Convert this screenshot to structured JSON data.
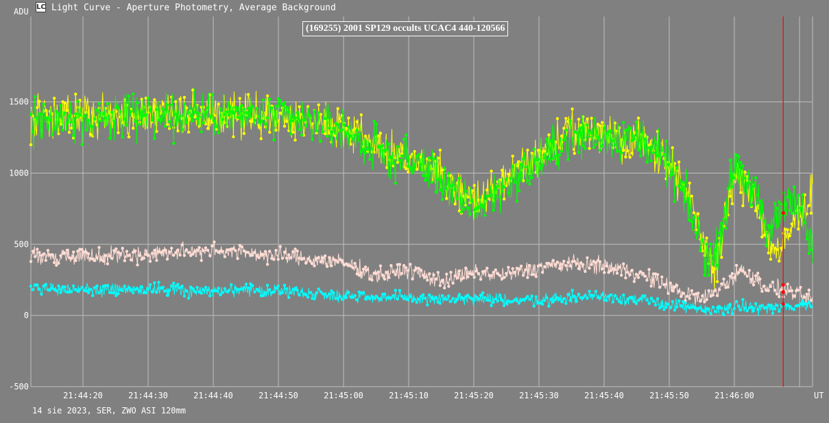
{
  "window": {
    "title": "Light Curve - Aperture Photometry, Average Background",
    "app_icon_glyph": "LC"
  },
  "footer": {
    "info": "14 sie 2023, SER, ZWO ASI 120mm"
  },
  "chart_data": {
    "type": "line",
    "title": "(169255) 2001 SP129 occults UCAC4 440-120566",
    "ylabel": "ADU",
    "xlabel": "UT",
    "ylim": [
      -500,
      2100
    ],
    "xlim": [
      "21:44:12",
      "21:46:12"
    ],
    "grid": true,
    "background_color": "#808080",
    "grid_color": "#c0c0c0",
    "y_ticks": [
      {
        "value": -500,
        "label": "-500"
      },
      {
        "value": 0,
        "label": "0"
      },
      {
        "value": 500,
        "label": "500"
      },
      {
        "value": 1000,
        "label": "1000"
      },
      {
        "value": 1500,
        "label": "1500"
      }
    ],
    "x_ticks": [
      {
        "value": "21:44:20",
        "label": "21:44:20"
      },
      {
        "value": "21:44:30",
        "label": "21:44:30"
      },
      {
        "value": "21:44:40",
        "label": "21:44:40"
      },
      {
        "value": "21:44:50",
        "label": "21:44:50"
      },
      {
        "value": "21:45:00",
        "label": "21:45:00"
      },
      {
        "value": "21:45:10",
        "label": "21:45:10"
      },
      {
        "value": "21:45:20",
        "label": "21:45:20"
      },
      {
        "value": "21:45:30",
        "label": "21:45:30"
      },
      {
        "value": "21:45:40",
        "label": "21:45:40"
      },
      {
        "value": "21:45:50",
        "label": "21:45:50"
      },
      {
        "value": "21:46:00",
        "label": "21:46:00"
      }
    ],
    "marker_line": {
      "x": "21:46:07.5",
      "color": "#ff0000"
    },
    "marker_points": [
      {
        "x": "21:46:07.5",
        "y": 720
      },
      {
        "x": "21:46:07.5",
        "y": 215
      },
      {
        "x": "21:46:07.5",
        "y": 165
      },
      {
        "x": "21:46:07.5",
        "y": 80
      }
    ],
    "series": [
      {
        "color": "#ffff00",
        "noise": 100,
        "x": [
          "21:44:12",
          "21:44:20",
          "21:44:30",
          "21:44:40",
          "21:44:50",
          "21:45:00",
          "21:45:03",
          "21:45:06",
          "21:45:10",
          "21:45:14",
          "21:45:18",
          "21:45:21",
          "21:45:25",
          "21:45:30",
          "21:45:34",
          "21:45:38",
          "21:45:42",
          "21:45:46",
          "21:45:50",
          "21:45:53",
          "21:45:55",
          "21:45:57",
          "21:46:00",
          "21:46:03",
          "21:46:05",
          "21:46:07",
          "21:46:09",
          "21:46:12"
        ],
        "y": [
          1380,
          1390,
          1420,
          1420,
          1400,
          1330,
          1280,
          1150,
          1100,
          1020,
          840,
          800,
          960,
          1120,
          1270,
          1300,
          1250,
          1230,
          1080,
          820,
          550,
          330,
          980,
          870,
          550,
          420,
          650,
          860
        ]
      },
      {
        "color": "#00ff00",
        "noise": 110,
        "x": [
          "21:44:12",
          "21:44:20",
          "21:44:30",
          "21:44:40",
          "21:44:50",
          "21:45:00",
          "21:45:03",
          "21:45:06",
          "21:45:10",
          "21:45:14",
          "21:45:18",
          "21:45:21",
          "21:45:25",
          "21:45:30",
          "21:45:34",
          "21:45:38",
          "21:45:42",
          "21:45:46",
          "21:45:50",
          "21:45:53",
          "21:45:55",
          "21:45:57",
          "21:46:00",
          "21:46:03",
          "21:46:05",
          "21:46:07",
          "21:46:09",
          "21:46:12"
        ],
        "y": [
          1370,
          1380,
          1410,
          1410,
          1390,
          1300,
          1220,
          1130,
          1090,
          1010,
          800,
          770,
          930,
          1080,
          1230,
          1280,
          1260,
          1240,
          1050,
          780,
          480,
          380,
          1060,
          880,
          560,
          720,
          880,
          470
        ]
      },
      {
        "color": "#ffdcd4",
        "noise": 40,
        "x": [
          "21:44:12",
          "21:44:20",
          "21:44:30",
          "21:44:40",
          "21:44:50",
          "21:45:00",
          "21:45:05",
          "21:45:10",
          "21:45:15",
          "21:45:20",
          "21:45:25",
          "21:45:30",
          "21:45:35",
          "21:45:40",
          "21:45:45",
          "21:45:50",
          "21:45:55",
          "21:45:58",
          "21:46:01",
          "21:46:05",
          "21:46:08",
          "21:46:12"
        ],
        "y": [
          420,
          420,
          430,
          460,
          420,
          370,
          280,
          320,
          240,
          300,
          280,
          340,
          360,
          350,
          300,
          200,
          110,
          200,
          320,
          200,
          180,
          100
        ]
      },
      {
        "color": "#00ffff",
        "noise": 30,
        "x": [
          "21:44:12",
          "21:44:20",
          "21:44:30",
          "21:44:40",
          "21:44:50",
          "21:45:00",
          "21:45:10",
          "21:45:20",
          "21:45:30",
          "21:45:40",
          "21:45:50",
          "21:45:56",
          "21:46:00",
          "21:46:05",
          "21:46:08",
          "21:46:12"
        ],
        "y": [
          190,
          180,
          185,
          170,
          175,
          140,
          120,
          110,
          110,
          140,
          80,
          30,
          60,
          50,
          60,
          80
        ]
      }
    ]
  }
}
